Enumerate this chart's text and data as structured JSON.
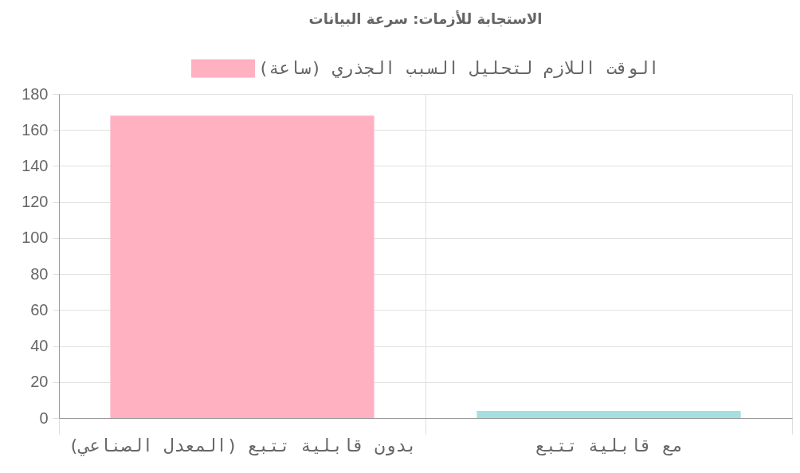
{
  "chart_data": {
    "type": "bar",
    "title": "الاستجابة للأزمات: سرعة البيانات",
    "categories": [
      "بدون قابلية تتبع (المعدل الصناعي)",
      "مع قابلية تتبع"
    ],
    "series": [
      {
        "name": "الوقت اللازم لتحليل السبب الجذري (ساعة)",
        "colors": [
          "#ffb1c1",
          "#a5dfdf"
        ],
        "values": [
          168,
          4
        ]
      }
    ],
    "ylim": [
      0,
      180
    ],
    "yticks": [
      0,
      20,
      40,
      60,
      80,
      100,
      120,
      140,
      160,
      180
    ],
    "grid": true,
    "legend": "top"
  }
}
